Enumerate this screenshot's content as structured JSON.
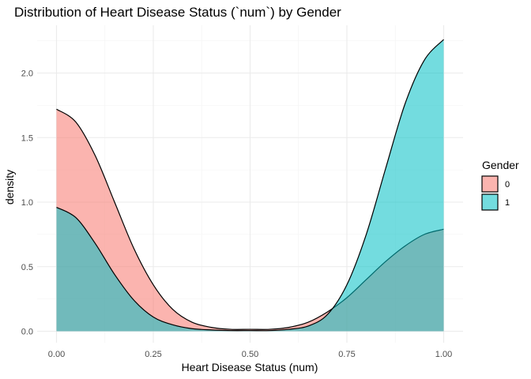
{
  "chart_data": {
    "type": "area",
    "title": "Distribution of Heart Disease Status (`num`) by Gender",
    "xlabel": "Heart Disease Status (num)",
    "ylabel": "density",
    "xlim": [
      0,
      1
    ],
    "ylim": [
      0,
      2.3
    ],
    "x_ticks": [
      0.0,
      0.25,
      0.5,
      0.75,
      1.0
    ],
    "x_tick_labels": [
      "0.00",
      "0.25",
      "0.50",
      "0.75",
      "1.00"
    ],
    "y_ticks": [
      0.0,
      0.5,
      1.0,
      1.5,
      2.0
    ],
    "y_tick_labels": [
      "0.0",
      "0.5",
      "1.0",
      "1.5",
      "2.0"
    ],
    "grid": true,
    "legend": {
      "title": "Gender",
      "position": "right"
    },
    "x": [
      0.0,
      0.05,
      0.1,
      0.15,
      0.2,
      0.25,
      0.3,
      0.35,
      0.4,
      0.45,
      0.5,
      0.55,
      0.6,
      0.65,
      0.7,
      0.75,
      0.8,
      0.85,
      0.9,
      0.95,
      1.0
    ],
    "series": [
      {
        "name": "0",
        "color": "#F8766D",
        "values": [
          1.72,
          1.62,
          1.36,
          1.0,
          0.64,
          0.36,
          0.17,
          0.07,
          0.03,
          0.015,
          0.015,
          0.015,
          0.03,
          0.07,
          0.15,
          0.26,
          0.4,
          0.54,
          0.66,
          0.75,
          0.79
        ]
      },
      {
        "name": "1",
        "color": "#00BFC4",
        "values": [
          0.96,
          0.88,
          0.68,
          0.44,
          0.24,
          0.11,
          0.05,
          0.02,
          0.01,
          0.005,
          0.005,
          0.005,
          0.015,
          0.04,
          0.13,
          0.36,
          0.75,
          1.26,
          1.76,
          2.1,
          2.26
        ]
      }
    ]
  }
}
